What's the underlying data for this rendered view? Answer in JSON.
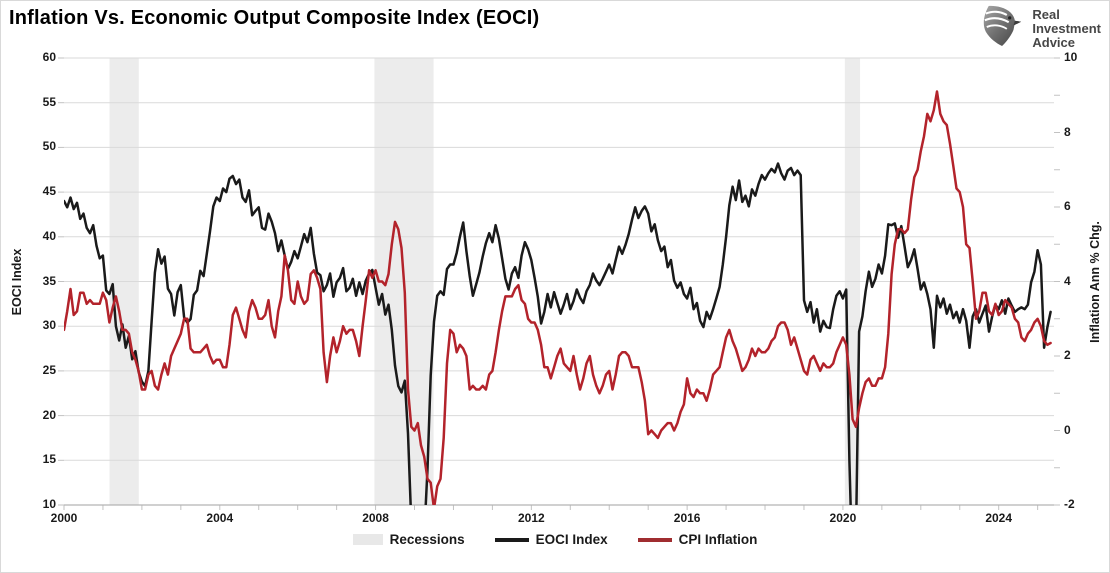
{
  "header": {
    "logo": {
      "line1": "Real",
      "line2": "Investment",
      "line3": "Advice",
      "icon": "eagle-icon"
    }
  },
  "chart_data": {
    "type": "line",
    "title": "Inflation Vs. Economic Output Composite Index (EOCI)",
    "grid": "horizontal-only",
    "legend_position": "bottom-center",
    "x_axis": {
      "min": 2000,
      "max": 2025.42,
      "tick_labels": [
        "2000",
        "2004",
        "2008",
        "2012",
        "2016",
        "2020",
        "2024"
      ],
      "tick_years": [
        2000,
        2004,
        2008,
        2012,
        2016,
        2020,
        2024
      ]
    },
    "left_axis": {
      "label": "EOCI Index",
      "min": 10,
      "max": 60,
      "ticks": [
        60,
        55,
        50,
        45,
        40,
        35,
        30,
        25,
        20,
        15,
        10
      ]
    },
    "right_axis": {
      "label": "Inflation Ann % Chg.",
      "min": -2,
      "max": 10,
      "ticks": [
        10,
        8,
        6,
        4,
        2,
        0,
        -2
      ],
      "minor_step": 1
    },
    "recessions": [
      [
        2001.17,
        2001.92
      ],
      [
        2007.97,
        2009.49
      ],
      [
        2020.05,
        2020.44
      ]
    ],
    "colors": {
      "eoci_line": "#1a1a1a",
      "cpi_line": "#b3232b",
      "recession_band": "#ececec",
      "gridline": "#dadada",
      "axis_line": "#b3b3b3",
      "tick_mark": "#c2c2c2"
    },
    "legend": [
      {
        "label": "Recessions",
        "type": "patch",
        "color": "#e8e8e8"
      },
      {
        "label": "EOCI Index",
        "type": "line",
        "color": "#1a1a1a"
      },
      {
        "label": "CPI Inflation",
        "type": "line",
        "color": "#a02d30"
      }
    ],
    "series": [
      {
        "name": "EOCI Index",
        "axis": "left",
        "color": "#1a1a1a",
        "start": 2000.0,
        "step": 0.083333,
        "values": [
          44.0,
          43.3,
          44.4,
          43.1,
          43.8,
          42.0,
          42.6,
          41.0,
          40.4,
          41.3,
          39.0,
          37.6,
          37.9,
          34.0,
          33.6,
          34.7,
          30.0,
          28.4,
          30.2,
          27.6,
          28.9,
          26.3,
          27.2,
          24.9,
          23.8,
          23.3,
          25.0,
          30.5,
          36.0,
          38.6,
          37.0,
          37.8,
          34.2,
          33.6,
          31.2,
          33.8,
          34.6,
          31.0,
          30.4,
          30.8,
          33.5,
          34.0,
          36.2,
          35.6,
          38.1,
          40.6,
          43.4,
          44.4,
          44.0,
          45.4,
          45.0,
          46.5,
          46.8,
          45.9,
          46.4,
          44.4,
          43.9,
          45.2,
          42.4,
          42.9,
          43.3,
          41.0,
          40.8,
          42.6,
          41.7,
          40.4,
          38.4,
          39.6,
          37.9,
          36.4,
          37.2,
          38.4,
          37.6,
          38.9,
          40.3,
          39.4,
          41.0,
          38.1,
          36.0,
          35.7,
          33.9,
          34.6,
          35.9,
          33.3,
          34.9,
          35.4,
          36.5,
          33.9,
          34.3,
          35.3,
          33.4,
          34.9,
          33.6,
          35.1,
          35.9,
          36.3,
          34.3,
          32.4,
          33.6,
          31.3,
          32.4,
          29.6,
          25.6,
          23.3,
          22.6,
          23.9,
          18.0,
          8.0,
          4.0,
          4.5,
          5.0,
          6.5,
          14.0,
          24.5,
          30.5,
          33.4,
          33.9,
          33.5,
          36.4,
          36.9,
          36.9,
          38.2,
          40.0,
          41.6,
          38.4,
          35.6,
          33.4,
          34.7,
          36.0,
          37.8,
          39.3,
          40.4,
          39.4,
          41.3,
          39.8,
          37.6,
          35.3,
          34.1,
          35.9,
          36.6,
          35.4,
          37.9,
          39.4,
          38.6,
          37.4,
          35.4,
          33.3,
          30.3,
          31.6,
          33.6,
          32.1,
          33.8,
          32.6,
          31.4,
          32.4,
          33.6,
          31.9,
          32.8,
          34.1,
          33.2,
          32.6,
          33.9,
          34.6,
          35.9,
          35.1,
          34.6,
          35.3,
          36.1,
          36.9,
          35.9,
          37.4,
          38.9,
          38.1,
          39.1,
          40.3,
          41.9,
          43.3,
          42.1,
          42.9,
          43.4,
          42.6,
          40.6,
          41.4,
          39.6,
          38.4,
          38.9,
          36.6,
          37.4,
          35.1,
          34.3,
          34.9,
          33.6,
          33.1,
          34.3,
          31.9,
          32.6,
          30.6,
          29.9,
          31.6,
          30.8,
          31.9,
          33.1,
          34.4,
          36.9,
          40.0,
          43.5,
          45.6,
          44.1,
          46.3,
          43.9,
          44.6,
          43.4,
          45.3,
          44.6,
          45.9,
          46.9,
          46.4,
          47.1,
          47.6,
          47.2,
          48.2,
          47.1,
          46.4,
          47.4,
          47.7,
          46.9,
          47.4,
          46.9,
          32.9,
          31.6,
          32.7,
          30.4,
          31.9,
          29.4,
          30.6,
          29.9,
          29.8,
          31.9,
          33.4,
          33.9,
          33.1,
          34.1,
          15.0,
          2.0,
          6.0,
          29.4,
          31.1,
          33.9,
          36.1,
          34.4,
          35.3,
          36.9,
          35.9,
          37.9,
          41.4,
          41.3,
          41.5,
          39.9,
          41.2,
          38.9,
          36.6,
          37.4,
          38.6,
          36.4,
          34.1,
          34.9,
          33.6,
          31.9,
          27.6,
          33.4,
          32.1,
          33.1,
          31.4,
          32.4,
          30.9,
          31.6,
          30.4,
          31.9,
          30.6,
          27.6,
          31.1,
          31.9,
          30.4,
          31.4,
          32.3,
          29.4,
          31.1,
          32.4,
          31.9,
          32.9,
          31.4,
          33.1,
          32.3,
          31.6,
          31.9,
          32.1,
          31.9,
          32.4,
          34.9,
          36.1,
          38.5,
          36.9,
          27.6,
          29.9,
          31.6
        ]
      },
      {
        "name": "CPI Inflation",
        "axis": "right",
        "color": "#b3232b",
        "start": 2000.0,
        "step": 0.083333,
        "values": [
          2.7,
          3.2,
          3.8,
          3.1,
          3.2,
          3.7,
          3.7,
          3.4,
          3.5,
          3.4,
          3.4,
          3.4,
          3.7,
          3.5,
          2.9,
          3.3,
          3.6,
          3.2,
          2.7,
          2.7,
          2.6,
          2.1,
          1.9,
          1.6,
          1.1,
          1.1,
          1.5,
          1.6,
          1.2,
          1.1,
          1.5,
          1.8,
          1.5,
          2.0,
          2.2,
          2.4,
          2.6,
          3.0,
          3.0,
          2.2,
          2.1,
          2.1,
          2.1,
          2.2,
          2.3,
          2.0,
          1.8,
          1.9,
          1.9,
          1.7,
          1.7,
          2.3,
          3.1,
          3.3,
          3.0,
          2.7,
          2.5,
          3.2,
          3.5,
          3.3,
          3.0,
          3.0,
          3.1,
          3.5,
          2.8,
          2.5,
          3.2,
          3.6,
          4.7,
          4.3,
          3.5,
          3.4,
          4.0,
          3.6,
          3.4,
          3.5,
          4.2,
          4.3,
          4.1,
          3.8,
          2.1,
          1.3,
          2.0,
          2.5,
          2.1,
          2.4,
          2.8,
          2.6,
          2.7,
          2.7,
          2.4,
          2.0,
          2.8,
          3.5,
          4.3,
          4.1,
          4.3,
          4.0,
          4.0,
          3.9,
          4.2,
          5.0,
          5.6,
          5.4,
          4.9,
          3.7,
          1.1,
          0.1,
          0.0,
          0.2,
          -0.4,
          -0.7,
          -1.3,
          -1.4,
          -2.1,
          -1.5,
          -1.3,
          -0.2,
          1.8,
          2.7,
          2.6,
          2.1,
          2.3,
          2.2,
          2.0,
          1.1,
          1.2,
          1.1,
          1.1,
          1.2,
          1.1,
          1.5,
          1.6,
          2.1,
          2.7,
          3.2,
          3.6,
          3.6,
          3.6,
          3.8,
          3.9,
          3.5,
          3.4,
          3.0,
          2.9,
          2.9,
          2.7,
          2.3,
          1.7,
          1.7,
          1.4,
          1.7,
          2.0,
          2.2,
          1.8,
          1.7,
          1.6,
          2.0,
          1.5,
          1.1,
          1.4,
          1.8,
          2.0,
          1.5,
          1.2,
          1.0,
          1.2,
          1.5,
          1.6,
          1.1,
          1.5,
          2.0,
          2.1,
          2.1,
          2.0,
          1.7,
          1.7,
          1.7,
          1.3,
          0.8,
          -0.1,
          0.0,
          -0.1,
          -0.2,
          0.0,
          0.1,
          0.2,
          0.2,
          0.0,
          0.2,
          0.5,
          0.7,
          1.4,
          1.0,
          0.9,
          1.1,
          1.0,
          1.0,
          0.8,
          1.1,
          1.5,
          1.6,
          1.7,
          2.1,
          2.5,
          2.7,
          2.4,
          2.2,
          1.9,
          1.6,
          1.7,
          1.9,
          2.2,
          2.0,
          2.2,
          2.1,
          2.1,
          2.2,
          2.4,
          2.5,
          2.8,
          2.9,
          2.9,
          2.7,
          2.3,
          2.5,
          2.2,
          1.9,
          1.6,
          1.5,
          1.9,
          2.0,
          1.8,
          1.6,
          1.8,
          1.7,
          1.7,
          1.8,
          2.1,
          2.3,
          2.5,
          2.3,
          1.5,
          0.3,
          0.1,
          0.6,
          1.0,
          1.3,
          1.4,
          1.2,
          1.2,
          1.4,
          1.4,
          1.7,
          2.6,
          4.2,
          5.0,
          5.4,
          5.4,
          5.3,
          5.4,
          6.2,
          6.8,
          7.0,
          7.5,
          7.9,
          8.5,
          8.3,
          8.6,
          9.1,
          8.5,
          8.3,
          8.2,
          7.7,
          7.1,
          6.5,
          6.4,
          6.0,
          5.0,
          4.9,
          4.0,
          3.0,
          3.2,
          3.7,
          3.7,
          3.2,
          3.1,
          3.4,
          3.1,
          3.2,
          3.5,
          3.4,
          3.3,
          3.0,
          2.9,
          2.5,
          2.4,
          2.6,
          2.7,
          2.9,
          3.0,
          2.8,
          2.4,
          2.3,
          2.35
        ]
      }
    ]
  }
}
